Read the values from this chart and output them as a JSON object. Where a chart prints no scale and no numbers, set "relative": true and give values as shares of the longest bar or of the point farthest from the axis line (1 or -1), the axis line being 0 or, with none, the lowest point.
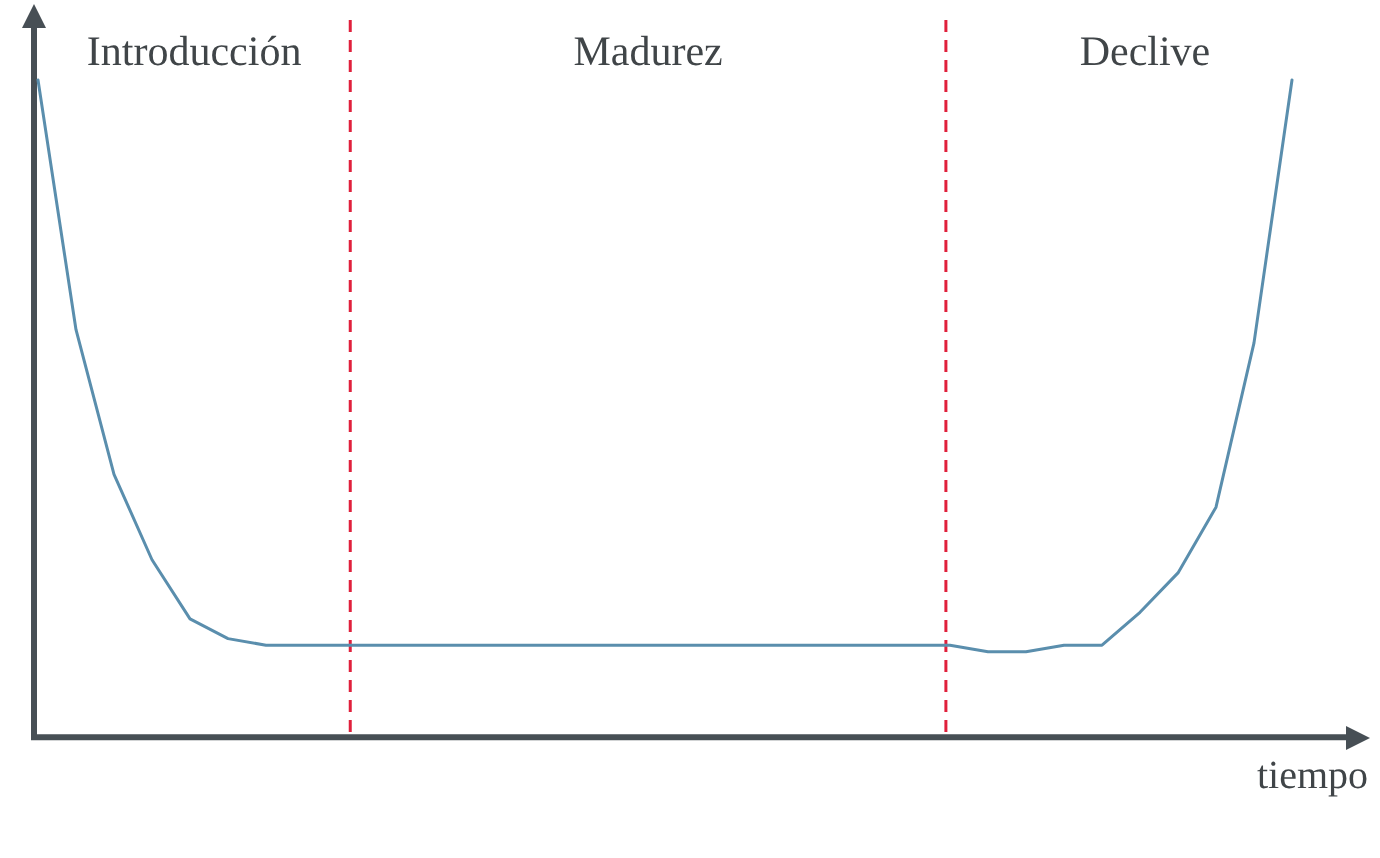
{
  "chart_data": {
    "type": "line",
    "relative": true,
    "xlabel": "tiempo",
    "legend": false,
    "marker": "none",
    "line_style": "solid",
    "categories": [
      null,
      null,
      null,
      null,
      null,
      null,
      null,
      null,
      null,
      null,
      null,
      null,
      null,
      null,
      null,
      null,
      null,
      null,
      null,
      null,
      null,
      null,
      null,
      null,
      null,
      null,
      null,
      null,
      null,
      null,
      null,
      null,
      null,
      null
    ],
    "series": [
      {
        "color": "#5a8ead",
        "values": [
          1.0,
          0.62,
          0.4,
          0.27,
          0.18,
          0.15,
          0.14,
          0.14,
          0.14,
          0.14,
          0.14,
          0.14,
          0.14,
          0.14,
          0.14,
          0.14,
          0.14,
          0.14,
          0.14,
          0.14,
          0.14,
          0.14,
          0.14,
          0.14,
          0.14,
          0.13,
          0.13,
          0.14,
          0.14,
          0.19,
          0.25,
          0.35,
          0.6,
          1.0
        ]
      }
    ],
    "annotations": [
      "Introducción",
      "Madurez",
      "Declive"
    ]
  }
}
